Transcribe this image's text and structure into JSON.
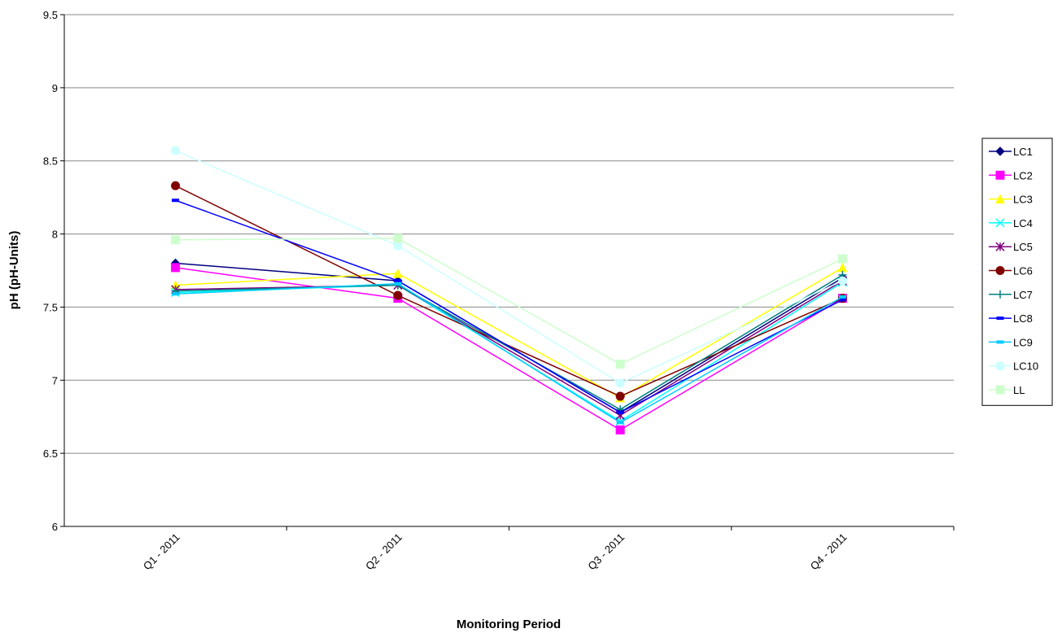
{
  "chart_data": {
    "type": "line",
    "x_label": "Monitoring Period",
    "y_label": "pH (pH-Units)",
    "categories": [
      "Q1 - 2011",
      "Q2 - 2011",
      "Q3 - 2011",
      "Q4 - 2011"
    ],
    "ylim": [
      6,
      9.5
    ],
    "yticks": [
      6,
      6.5,
      7,
      7.5,
      8,
      8.5,
      9,
      9.5
    ],
    "grid": true,
    "legend": "right",
    "series": [
      {
        "name": "LC1",
        "color": "#000080",
        "marker": "diamond",
        "values": [
          7.8,
          7.68,
          6.78,
          7.7
        ]
      },
      {
        "name": "LC2",
        "color": "#ff00ff",
        "marker": "square",
        "values": [
          7.77,
          7.56,
          6.66,
          7.56
        ]
      },
      {
        "name": "LC3",
        "color": "#ffff00",
        "marker": "triangle",
        "values": [
          7.65,
          7.73,
          6.88,
          7.77
        ]
      },
      {
        "name": "LC4",
        "color": "#00ffff",
        "marker": "x",
        "values": [
          7.6,
          7.65,
          6.72,
          7.67
        ]
      },
      {
        "name": "LC5",
        "color": "#800080",
        "marker": "star",
        "values": [
          7.62,
          7.65,
          6.76,
          7.68
        ]
      },
      {
        "name": "LC6",
        "color": "#800000",
        "marker": "circle",
        "values": [
          8.33,
          7.58,
          6.89,
          7.56
        ]
      },
      {
        "name": "LC7",
        "color": "#008080",
        "marker": "plus",
        "values": [
          7.61,
          7.65,
          6.8,
          7.72
        ]
      },
      {
        "name": "LC8",
        "color": "#0000ff",
        "marker": "dash",
        "values": [
          8.23,
          7.68,
          6.78,
          7.55
        ]
      },
      {
        "name": "LC9",
        "color": "#00ccff",
        "marker": "dash",
        "values": [
          7.59,
          7.66,
          6.71,
          7.57
        ]
      },
      {
        "name": "LC10",
        "color": "#ccffff",
        "marker": "circle",
        "values": [
          8.57,
          7.92,
          6.98,
          7.68
        ]
      },
      {
        "name": "LL",
        "color": "#ccffcc",
        "marker": "square",
        "values": [
          7.96,
          7.97,
          7.11,
          7.83
        ]
      }
    ]
  }
}
